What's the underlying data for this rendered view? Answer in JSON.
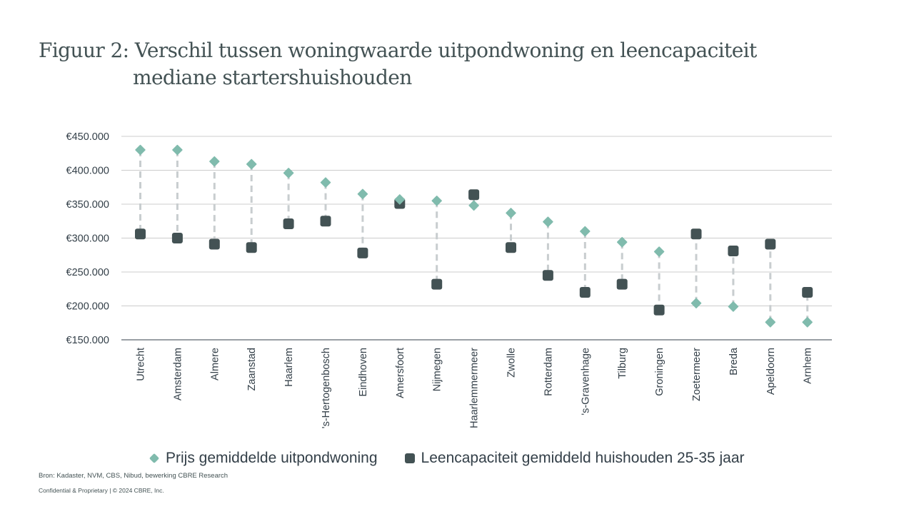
{
  "title_line1": "Figuur 2: Verschil tussen woningwaarde uitpondwoning en leencapaciteit",
  "title_line2": "mediane startershuishouden",
  "source": "Bron: Kadaster, NVM, CBS, Nibud, bewerking CBRE Research",
  "confidential": "Confidential & Proprietary | © 2024 CBRE, Inc.",
  "colors": {
    "prijs": "#80bbad",
    "leen": "#435254",
    "connector": "#c8cdcf",
    "grid": "#cccccc",
    "text": "#333f48"
  },
  "chart_data": {
    "type": "scatter",
    "title": "Figuur 2: Verschil tussen woningwaarde uitpondwoning en leencapaciteit mediane startershuishouden",
    "xlabel": "",
    "ylabel": "",
    "categories": [
      "Utrecht",
      "Amsterdam",
      "Almere",
      "Zaanstad",
      "Haarlem",
      "'s-Hertogenbosch",
      "Eindhoven",
      "Amersfoort",
      "Nijmegen",
      "Haarlemmermeer",
      "Zwolle",
      "Rotterdam",
      "'s-Gravenhage",
      "Tilburg",
      "Groningen",
      "Zoetermeer",
      "Breda",
      "Apeldoorn",
      "Arnhem"
    ],
    "ylim": [
      150000,
      450000
    ],
    "yticks": [
      150000,
      200000,
      250000,
      300000,
      350000,
      400000,
      450000
    ],
    "ytick_labels": [
      "€150.000",
      "€200.000",
      "€250.000",
      "€300.000",
      "€350.000",
      "€400.000",
      "€450.000"
    ],
    "grid": true,
    "legend_position": "bottom",
    "series": [
      {
        "name": "Prijs gemiddelde uitpondwoning",
        "marker": "diamond",
        "values": [
          430000,
          430000,
          413000,
          409000,
          396000,
          382000,
          365000,
          357000,
          355000,
          348000,
          337000,
          324000,
          310000,
          294000,
          280000,
          204000,
          199000,
          176000,
          176000
        ]
      },
      {
        "name": "Leencapaciteit gemiddeld huishouden 25-35 jaar",
        "marker": "square",
        "values": [
          306000,
          300000,
          291000,
          286000,
          321000,
          325000,
          278000,
          351000,
          232000,
          364000,
          286000,
          245000,
          220000,
          232000,
          194000,
          306000,
          281000,
          291000,
          220000
        ]
      }
    ]
  }
}
